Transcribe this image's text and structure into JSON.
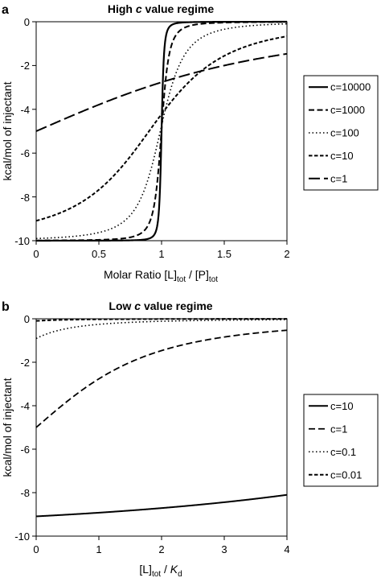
{
  "chart_data": [
    {
      "type": "line",
      "panel_label": "a",
      "title": "High c value regime",
      "title_parts": {
        "before": "High ",
        "var": "c",
        "after": " value regime"
      },
      "xlabel": "Molar Ratio [L]tot / [P]tot",
      "xlabel_parts": {
        "a": "Molar Ratio [L]",
        "a_sub": "tot",
        "b": " / [P]",
        "b_sub": "tot"
      },
      "ylabel": "kcal/mol of injectant",
      "xlim": [
        0,
        2
      ],
      "ylim": [
        -10,
        0
      ],
      "xticks": [
        "0",
        "0.5",
        "1",
        "1.5",
        "2"
      ],
      "yticks": [
        "0",
        "-2",
        "-4",
        "-6",
        "-8",
        "-10"
      ],
      "legend_position": "right",
      "x_mode": "ratio",
      "series": [
        {
          "name": "c=10000",
          "c": 10000,
          "dash": "solid",
          "width": 2.2
        },
        {
          "name": "c=1000",
          "c": 1000,
          "dash": "7 3.5",
          "width": 2
        },
        {
          "name": "c=100",
          "c": 100,
          "dash": "1.5 3",
          "width": 1.6
        },
        {
          "name": "c=10",
          "c": 10,
          "dash": "4.5 2.5",
          "width": 2
        },
        {
          "name": "c=1",
          "c": 1,
          "dash": "14 5",
          "width": 2
        }
      ]
    },
    {
      "type": "line",
      "panel_label": "b",
      "title": "Low c value regime",
      "title_parts": {
        "before": "Low ",
        "var": "c",
        "after": " value regime"
      },
      "xlabel": "[L]tot / Kd",
      "xlabel_parts": {
        "a": "[L]",
        "a_sub": "tot",
        "b": " / ",
        "b_var": "K",
        "b_sub": "d"
      },
      "ylabel": "kcal/mol of injectant",
      "xlim": [
        0,
        4
      ],
      "ylim": [
        -10,
        0
      ],
      "xticks": [
        "0",
        "1",
        "2",
        "3",
        "4"
      ],
      "yticks": [
        "0",
        "-2",
        "-4",
        "-6",
        "-8",
        "-10"
      ],
      "legend_position": "right",
      "x_mode": "kd",
      "series": [
        {
          "name": "c=10",
          "c": 10,
          "dash": "solid",
          "width": 2
        },
        {
          "name": "c=1",
          "c": 1,
          "dash": "8 4",
          "width": 1.8
        },
        {
          "name": "c=0.1",
          "c": 0.1,
          "dash": "1.5 3",
          "width": 1.6
        },
        {
          "name": "c=0.01",
          "c": 0.01,
          "dash": "4.5 2.5",
          "width": 2
        }
      ]
    }
  ]
}
